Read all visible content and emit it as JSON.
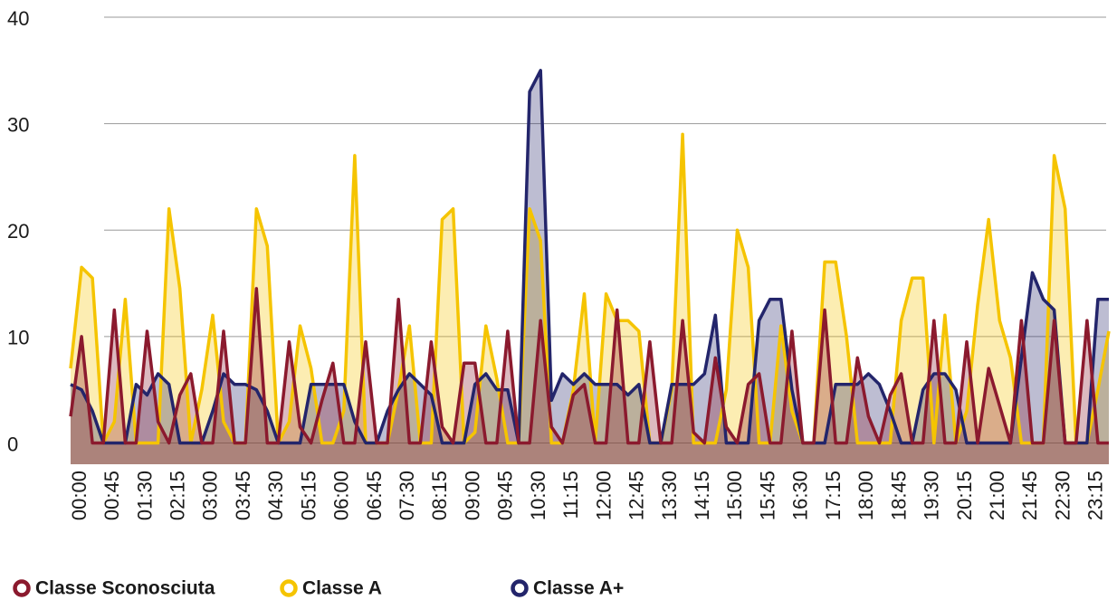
{
  "chart_data": {
    "type": "area",
    "categories": [
      "00:00",
      null,
      null,
      "00:45",
      null,
      null,
      "01:30",
      null,
      null,
      "02:15",
      null,
      null,
      "03:00",
      null,
      null,
      "03:45",
      null,
      null,
      "04:30",
      null,
      null,
      "05:15",
      null,
      null,
      "06:00",
      null,
      null,
      "06:45",
      null,
      null,
      "07:30",
      null,
      null,
      "08:15",
      null,
      null,
      "09:00",
      null,
      null,
      "09:45",
      null,
      null,
      "10:30",
      null,
      null,
      "11:15",
      null,
      null,
      "12:00",
      null,
      null,
      "12:45",
      null,
      null,
      "13:30",
      null,
      null,
      "14:15",
      null,
      null,
      "15:00",
      null,
      null,
      "15:45",
      null,
      null,
      "16:30",
      null,
      null,
      "17:15",
      null,
      null,
      "18:00",
      null,
      null,
      "18:45",
      null,
      null,
      "19:30",
      null,
      null,
      "20:15",
      null,
      null,
      "21:00",
      null,
      null,
      "21:45",
      null,
      null,
      "22:30",
      null,
      null,
      "23:15",
      null,
      null
    ],
    "series": [
      {
        "name": "Classe A",
        "color": "#f5c400",
        "values": [
          7,
          16.5,
          15.5,
          0,
          2,
          13.5,
          0,
          0,
          0,
          22,
          14.5,
          0,
          5,
          12,
          2,
          0,
          0,
          22,
          18.5,
          0,
          2,
          11,
          7,
          0,
          0,
          3,
          27,
          0,
          0,
          0,
          5,
          11,
          0,
          0,
          21,
          22,
          0,
          1,
          11,
          6,
          0,
          0,
          22,
          19,
          0,
          0,
          5,
          14,
          0,
          14,
          11.5,
          11.5,
          10.5,
          0,
          0,
          5,
          29,
          0,
          0,
          0,
          5,
          20,
          16.5,
          0,
          0,
          11,
          3,
          0,
          0,
          17,
          17,
          10,
          0,
          0,
          0,
          0,
          11.5,
          15.5,
          15.5,
          0,
          12,
          0,
          3,
          13,
          21,
          11.5,
          8,
          0,
          0,
          0,
          27,
          22,
          0,
          0,
          5,
          10.5
        ]
      },
      {
        "name": "Classe A+",
        "color": "#23256b",
        "values": [
          5.5,
          5,
          3,
          0,
          0,
          0,
          5.5,
          4.5,
          6.5,
          5.5,
          0,
          0,
          0,
          3,
          6.5,
          5.5,
          5.5,
          5,
          3,
          0,
          0,
          0,
          5.5,
          5.5,
          5.5,
          5.5,
          2,
          0,
          0,
          3,
          5,
          6.5,
          5.5,
          4.5,
          0,
          0,
          0,
          5.5,
          6.5,
          5,
          5,
          0,
          33,
          35,
          4,
          6.5,
          5.5,
          6.5,
          5.5,
          5.5,
          5.5,
          4.5,
          5.5,
          0,
          0,
          5.5,
          5.5,
          5.5,
          6.5,
          12,
          0,
          0,
          0,
          11.5,
          13.5,
          13.5,
          5,
          0,
          0,
          0,
          5.5,
          5.5,
          5.5,
          6.5,
          5.5,
          3,
          0,
          0,
          5,
          6.5,
          6.5,
          5,
          0,
          0,
          0,
          0,
          0,
          8,
          16,
          13.5,
          12.5,
          0,
          0,
          0,
          13.5,
          13.5
        ]
      },
      {
        "name": "Classe Sconosciuta",
        "color": "#8b1a2e",
        "values": [
          2.5,
          10,
          0,
          0,
          12.5,
          0,
          0,
          10.5,
          2,
          0,
          4.5,
          6.5,
          0,
          0,
          10.5,
          0,
          0,
          14.5,
          0,
          0,
          9.5,
          1.5,
          0,
          4,
          7.5,
          0,
          0,
          9.5,
          0,
          0,
          13.5,
          0,
          0,
          9.5,
          1.5,
          0,
          7.5,
          7.5,
          0,
          0,
          10.5,
          0,
          0,
          11.5,
          1.5,
          0,
          4.5,
          5.5,
          0,
          0,
          12.5,
          0,
          0,
          9.5,
          0,
          0,
          11.5,
          1,
          0,
          8,
          1.5,
          0,
          5.5,
          6.5,
          0,
          0,
          10.5,
          0,
          0,
          12.5,
          0,
          0,
          8,
          2.5,
          0,
          4.5,
          6.5,
          0,
          0,
          11.5,
          0,
          0,
          9.5,
          0,
          7,
          3.5,
          0,
          11.5,
          0,
          0,
          11.5,
          0,
          0,
          11.5,
          0,
          0
        ]
      }
    ],
    "legend_order": [
      "Classe Sconosciuta",
      "Classe A",
      "Classe A+"
    ],
    "ylim": [
      -2,
      40
    ],
    "yticks": [
      0,
      10,
      20,
      30,
      40
    ],
    "grid": true,
    "legend": "bottom"
  }
}
